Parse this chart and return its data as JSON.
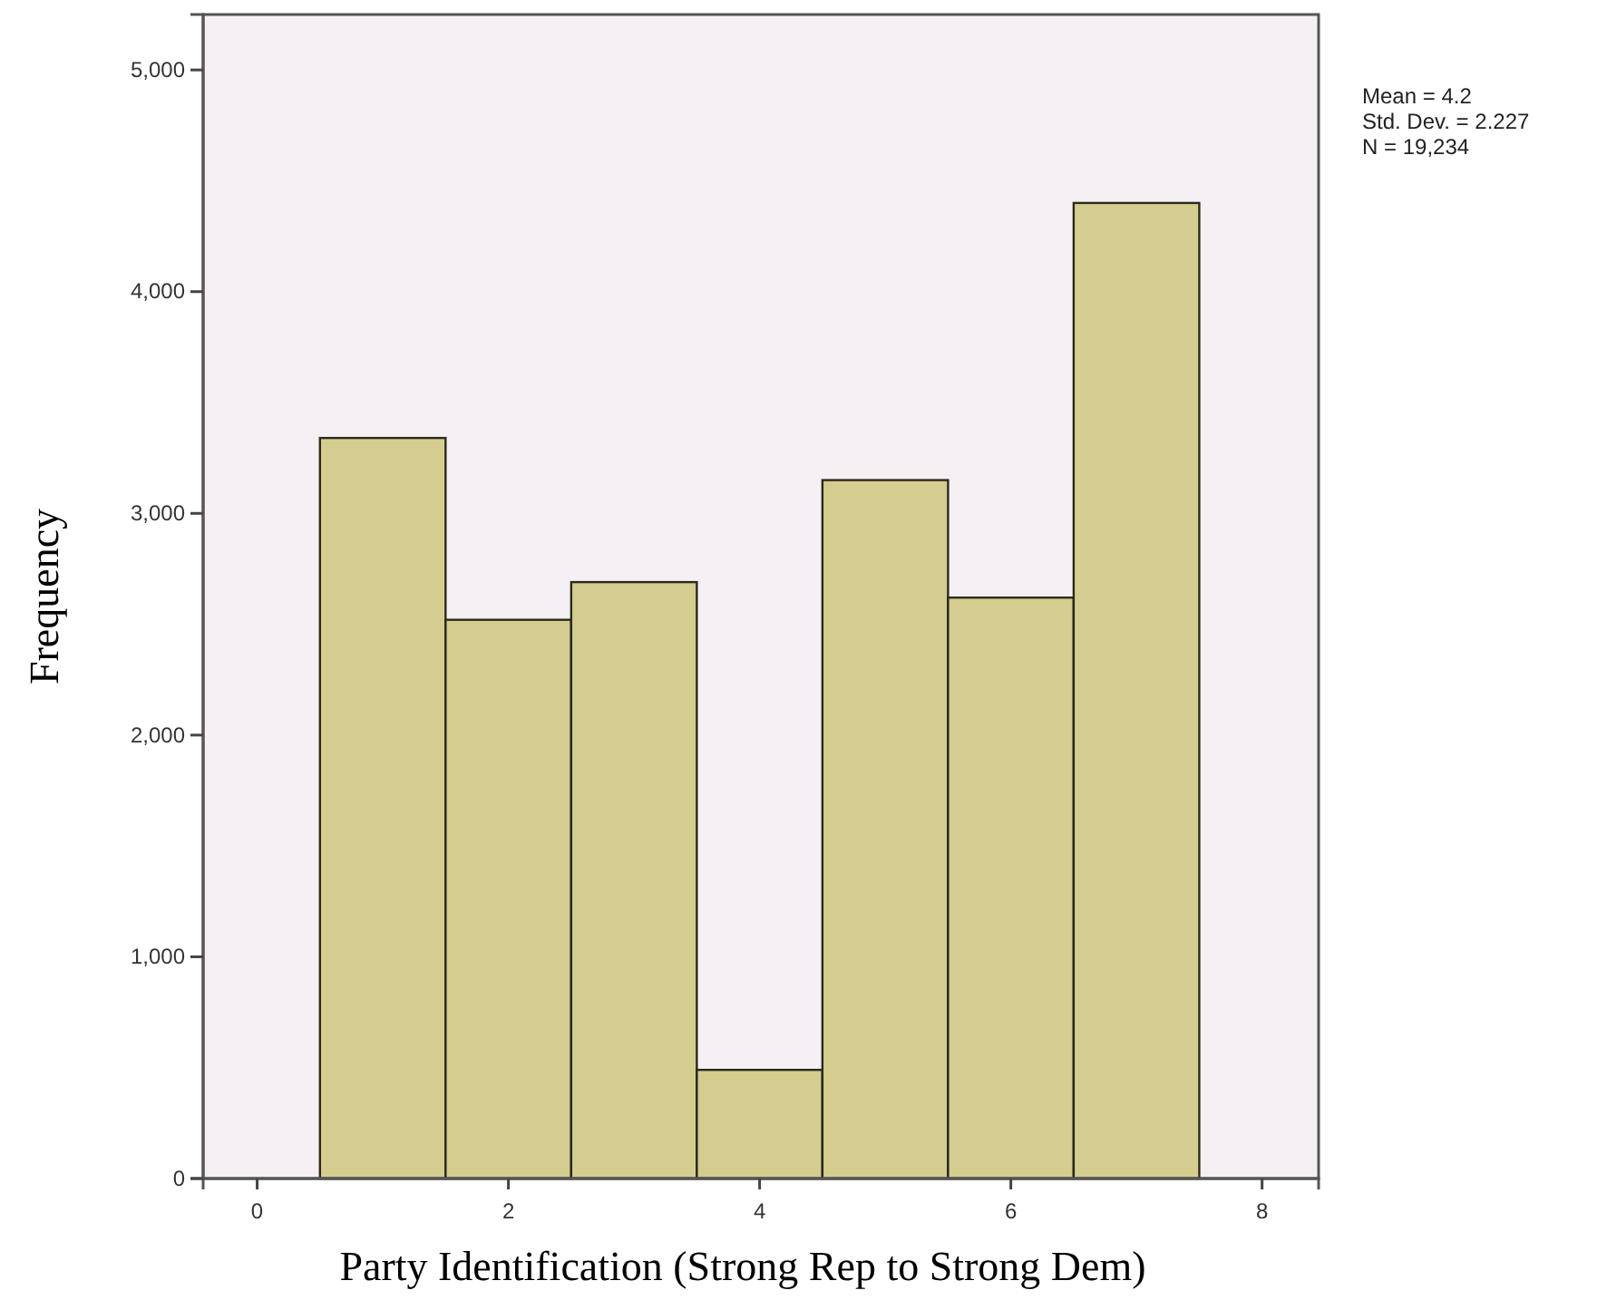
{
  "chart_data": {
    "type": "histogram",
    "xlabel": "Party Identification (Strong Rep to Strong Dem)",
    "ylabel": "Frequency",
    "bins": [
      0.5,
      1.5,
      2.5,
      3.5,
      4.5,
      5.5,
      6.5,
      7.5
    ],
    "values": [
      3340,
      2520,
      2690,
      490,
      3150,
      2620,
      4400
    ],
    "color": "#d5cd8f",
    "xlim": [
      -0.43,
      8.45
    ],
    "xticks": [
      0,
      2,
      4,
      6,
      8
    ],
    "ylim": [
      0,
      5250
    ],
    "yticks": [
      0,
      {
        "value": 1000,
        "label": "1,000"
      },
      {
        "value": 2000,
        "label": "2,000"
      },
      {
        "value": 3000,
        "label": "3,000"
      },
      {
        "value": 4000,
        "label": "4,000"
      },
      {
        "value": 5000,
        "label": "5,000"
      }
    ],
    "grid": false,
    "annotations": [
      "Mean = 4.2",
      "Std. Dev. = 2.227",
      "N = 19,234"
    ]
  }
}
